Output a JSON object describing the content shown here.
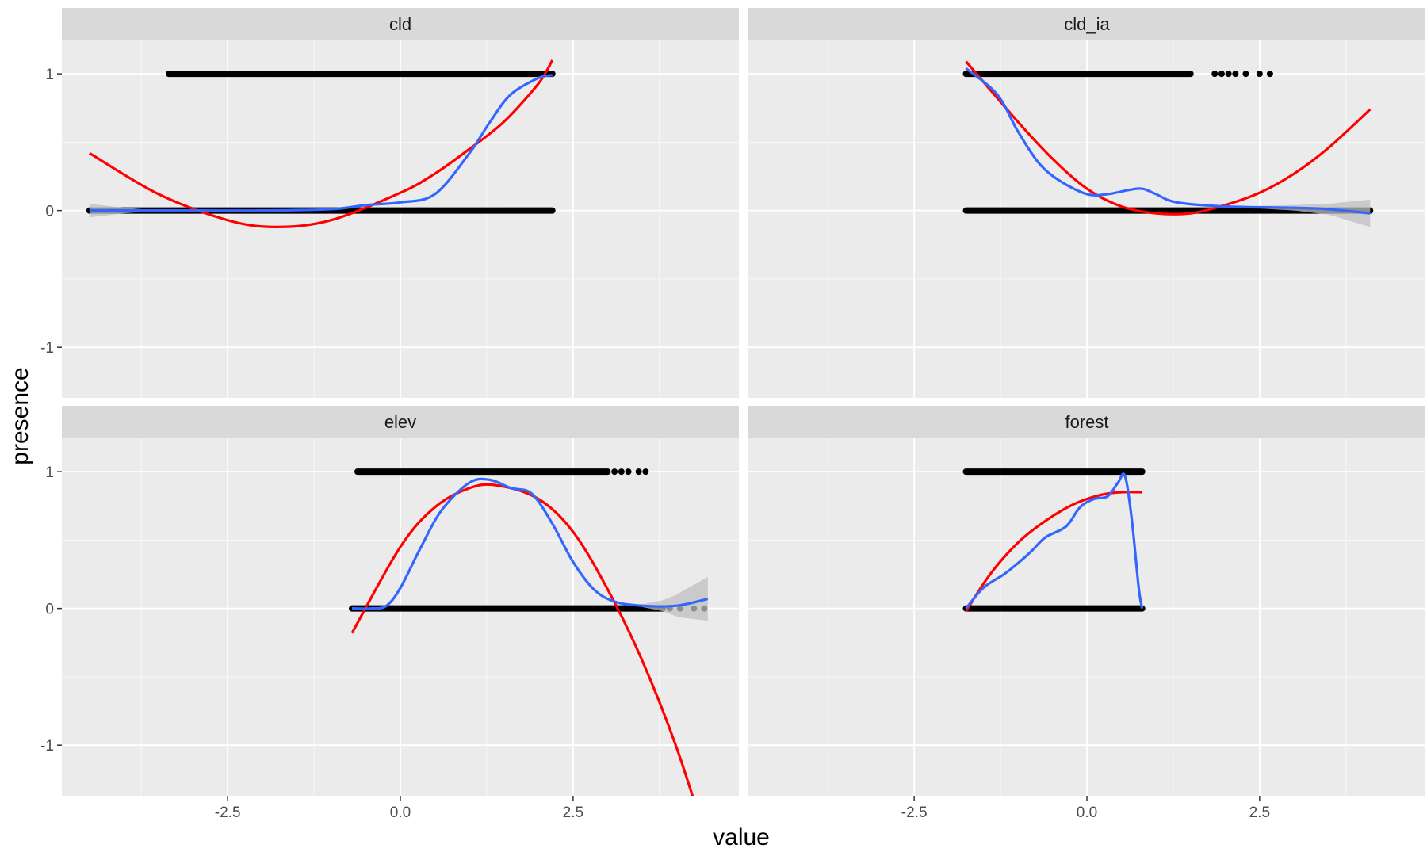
{
  "chart_data": {
    "type": "scatter",
    "xlabel": "value",
    "ylabel": "presence",
    "xlim": [
      -4.9,
      4.9
    ],
    "ylim": [
      -1.37,
      1.25
    ],
    "x_ticks": [
      -2.5,
      0.0,
      2.5
    ],
    "x_tick_labels": [
      "-2.5",
      "0.0",
      "2.5"
    ],
    "y_ticks": [
      -1,
      0,
      1
    ],
    "y_tick_labels": [
      "-1",
      "0",
      "1"
    ],
    "grid": true,
    "legend": "none",
    "colors": {
      "panel_bg": "#ebebeb",
      "strip_bg": "#d9d9d9",
      "grid": "#ffffff",
      "points": "#000000",
      "quadratic_fit": "#ff0000",
      "smooth_fit": "#3366ff",
      "confidence_band": "#bfbfbf"
    },
    "panels": [
      {
        "name": "cld",
        "presence_1_range": [
          -3.35,
          2.2
        ],
        "presence_1_sparse_x": [
          -3.35,
          -2.45,
          -2.35,
          -2.2,
          -2.05,
          -1.85,
          -1.72,
          -1.62,
          -1.35,
          -1.25,
          -1.15
        ],
        "presence_0_range": [
          -4.5,
          2.2
        ],
        "quadratic_fit": {
          "x": [
            -4.5,
            -3.5,
            -2.5,
            -1.8,
            -1.0,
            0.0,
            0.5,
            1.0,
            1.5,
            2.0,
            2.2
          ],
          "y": [
            0.42,
            0.12,
            -0.07,
            -0.12,
            -0.07,
            0.13,
            0.27,
            0.45,
            0.65,
            0.93,
            1.1
          ]
        },
        "smooth_fit": {
          "x": [
            -4.5,
            -3.0,
            -2.0,
            -1.0,
            -0.5,
            0.0,
            0.5,
            1.0,
            1.3,
            1.6,
            2.0,
            2.2
          ],
          "y": [
            0.0,
            0.0,
            0.0,
            0.01,
            0.04,
            0.06,
            0.12,
            0.42,
            0.65,
            0.85,
            0.97,
            0.99
          ]
        },
        "band": {
          "x": [
            -4.5,
            -4.0,
            -3.5
          ],
          "half_width": [
            0.05,
            0.02,
            0.0
          ]
        }
      },
      {
        "name": "cld_ia",
        "presence_1_range": [
          -1.75,
          1.5
        ],
        "presence_1_sparse_x": [
          1.85,
          1.95,
          2.05,
          2.15,
          2.3,
          2.5,
          2.65
        ],
        "presence_0_range": [
          -1.75,
          4.1
        ],
        "quadratic_fit": {
          "x": [
            -1.75,
            -1.0,
            -0.5,
            0.0,
            0.5,
            1.0,
            1.5,
            2.0,
            2.5,
            3.0,
            3.5,
            4.1
          ],
          "y": [
            1.09,
            0.65,
            0.38,
            0.16,
            0.03,
            -0.02,
            -0.02,
            0.04,
            0.13,
            0.27,
            0.46,
            0.74
          ]
        },
        "smooth_fit": {
          "x": [
            -1.75,
            -1.3,
            -1.0,
            -0.7,
            -0.4,
            0.0,
            0.3,
            0.6,
            0.8,
            1.0,
            1.3,
            2.0,
            3.0,
            3.5,
            4.1
          ],
          "y": [
            1.04,
            0.85,
            0.58,
            0.35,
            0.22,
            0.12,
            0.12,
            0.15,
            0.16,
            0.12,
            0.06,
            0.03,
            0.02,
            0.01,
            -0.02
          ]
        },
        "band": {
          "x": [
            2.5,
            3.0,
            3.5,
            4.1
          ],
          "half_width": [
            0.01,
            0.02,
            0.04,
            0.1
          ]
        }
      },
      {
        "name": "elev",
        "presence_1_range": [
          -0.62,
          3.0
        ],
        "presence_1_sparse_x": [
          3.1,
          3.2,
          3.3,
          3.45,
          3.55
        ],
        "presence_0_range": [
          -0.7,
          3.8
        ],
        "presence_0_sparse_x": [
          3.9,
          4.05,
          4.25,
          4.4
        ],
        "quadratic_fit": {
          "x": [
            -0.7,
            0.0,
            0.5,
            1.0,
            1.4,
            2.0,
            2.5,
            3.0,
            3.5,
            4.0,
            4.45
          ],
          "y": [
            -0.18,
            0.45,
            0.74,
            0.88,
            0.9,
            0.8,
            0.56,
            0.14,
            -0.38,
            -1.02,
            -1.73
          ]
        },
        "smooth_fit": {
          "x": [
            -0.7,
            -0.4,
            -0.2,
            0.0,
            0.3,
            0.6,
            1.0,
            1.3,
            1.6,
            1.9,
            2.2,
            2.5,
            2.8,
            3.1,
            3.5,
            4.0,
            4.45
          ],
          "y": [
            0.0,
            0.0,
            0.02,
            0.15,
            0.45,
            0.72,
            0.92,
            0.94,
            0.88,
            0.84,
            0.62,
            0.34,
            0.14,
            0.05,
            0.02,
            0.02,
            0.07
          ]
        },
        "band": {
          "x": [
            3.5,
            3.8,
            4.1,
            4.45
          ],
          "half_width": [
            0.01,
            0.04,
            0.1,
            0.16
          ]
        }
      },
      {
        "name": "forest",
        "presence_1_range": [
          -1.75,
          0.8
        ],
        "presence_0_range": [
          -1.75,
          0.8
        ],
        "quadratic_fit": {
          "x": [
            -1.75,
            -1.4,
            -1.0,
            -0.6,
            -0.2,
            0.2,
            0.5,
            0.8
          ],
          "y": [
            -0.02,
            0.25,
            0.48,
            0.64,
            0.76,
            0.83,
            0.85,
            0.85
          ]
        },
        "smooth_fit": {
          "x": [
            -1.75,
            -1.5,
            -1.2,
            -1.0,
            -0.8,
            -0.6,
            -0.3,
            -0.1,
            0.1,
            0.3,
            0.45,
            0.55,
            0.65,
            0.75,
            0.8
          ],
          "y": [
            0.0,
            0.15,
            0.25,
            0.33,
            0.42,
            0.52,
            0.6,
            0.74,
            0.8,
            0.82,
            0.92,
            0.97,
            0.65,
            0.15,
            0.0
          ]
        },
        "band": {
          "x": [],
          "half_width": []
        }
      }
    ]
  }
}
